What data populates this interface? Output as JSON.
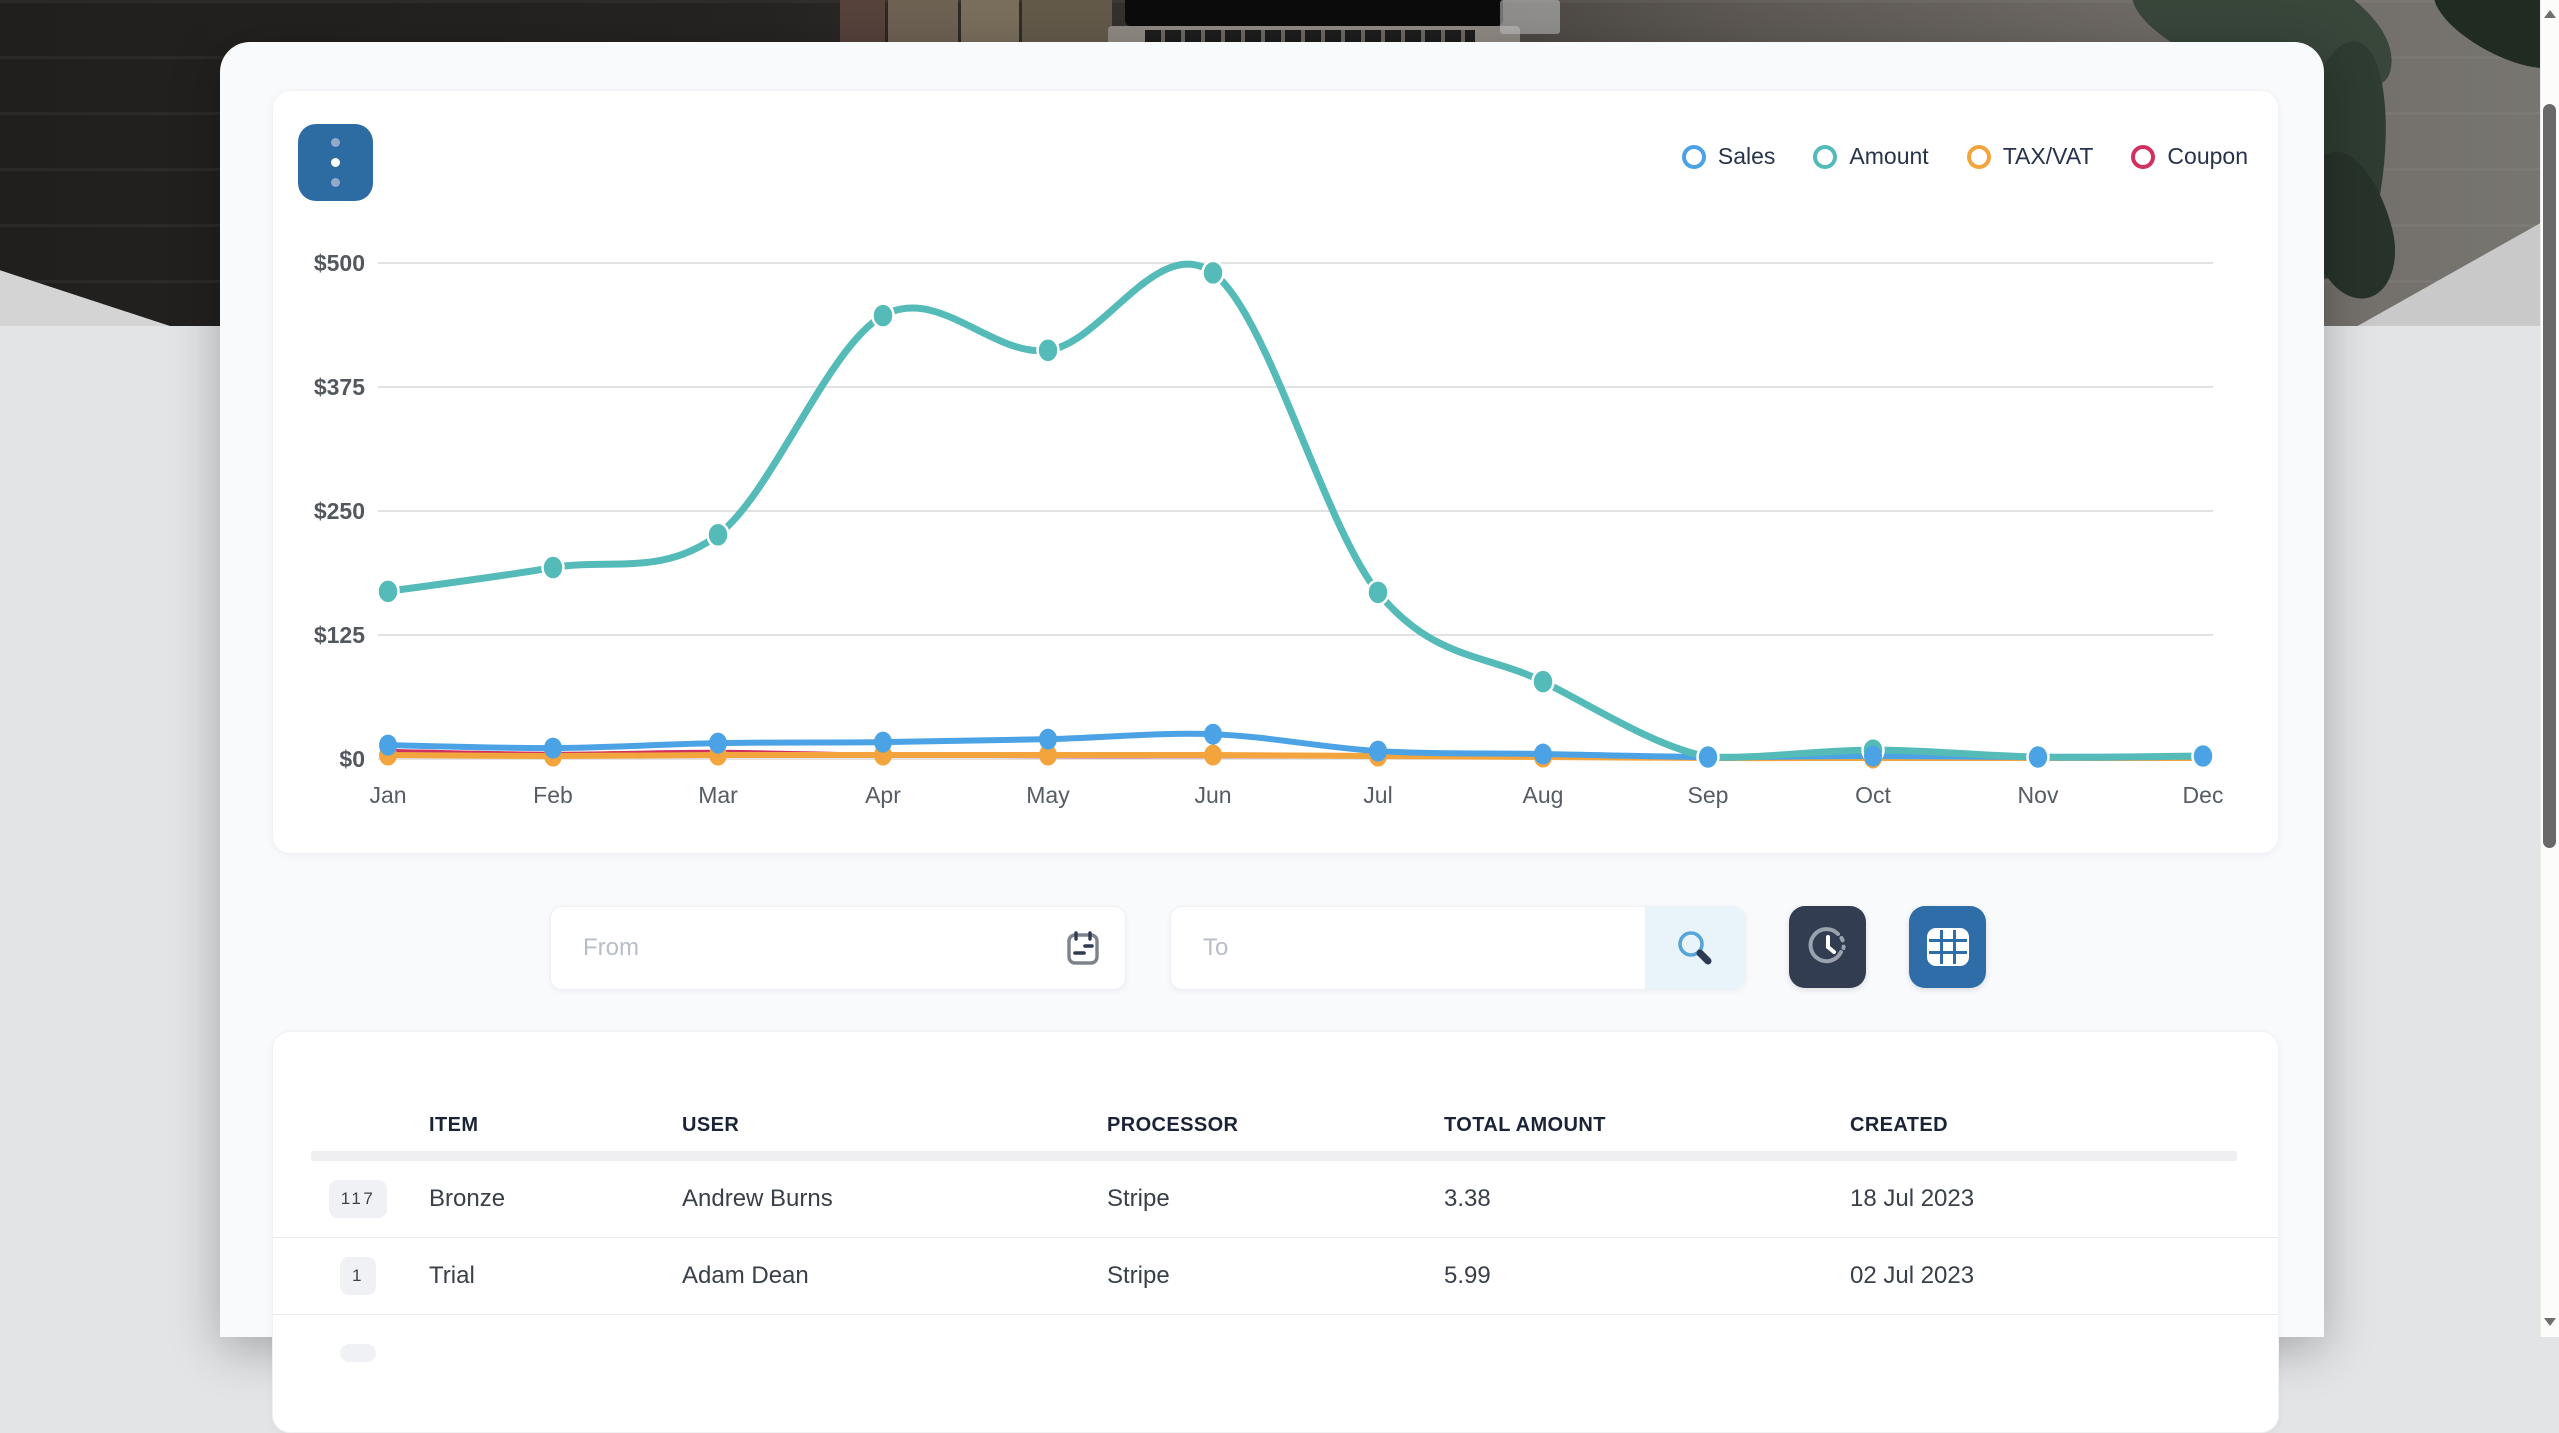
{
  "ui_colors": {
    "panel_bg": "#f9fafc",
    "card_bg": "#ffffff",
    "accent_blue": "#2d6ba3",
    "dark_navy": "#333d52",
    "grid_line": "#d8d9da",
    "table_header_text": "#1a2436"
  },
  "chart_card": {
    "menu_button": {
      "icon": "kebab-vertical-icon"
    }
  },
  "chart_data": {
    "type": "line",
    "x": [
      "Jan",
      "Feb",
      "Mar",
      "Apr",
      "May",
      "Jun",
      "Jul",
      "Aug",
      "Sep",
      "Oct",
      "Nov",
      "Dec"
    ],
    "series": [
      {
        "name": "Coupon",
        "color": "#d1315e",
        "values": [
          8,
          5,
          7,
          4,
          3,
          3,
          3,
          2,
          1,
          2,
          1,
          1
        ],
        "width": 4.5,
        "dots": false
      },
      {
        "name": "TAX/VAT",
        "color": "#f3a43c",
        "values": [
          4,
          3,
          4,
          4,
          4,
          4,
          3,
          2,
          1,
          1,
          1,
          1
        ],
        "width": 6,
        "dots": true
      },
      {
        "name": "Sales",
        "color": "#4ba2e4",
        "values": [
          14,
          11,
          16,
          17,
          20,
          25,
          8,
          5,
          2,
          3,
          2,
          3
        ],
        "width": 6,
        "dots": true
      },
      {
        "name": "Amount",
        "color": "#54bbb9",
        "values": [
          169,
          193,
          226,
          447,
          412,
          490,
          168,
          78,
          2,
          9,
          2,
          3
        ],
        "width": 7,
        "dots": true
      }
    ],
    "legend_order": [
      "Sales",
      "Amount",
      "TAX/VAT",
      "Coupon"
    ],
    "yticks": [
      "$0",
      "$125",
      "$250",
      "$375",
      "$500"
    ],
    "ylim": [
      0,
      500
    ],
    "grid": "horizontal",
    "legend_position": "top-right",
    "title": "",
    "xlabel": "",
    "ylabel": ""
  },
  "filters": {
    "from": {
      "placeholder": "From",
      "icon": "calendar-icon"
    },
    "to": {
      "placeholder": "To",
      "icon": "search-icon"
    },
    "history_button": {
      "icon": "clock-icon"
    },
    "table_button": {
      "icon": "grid-icon"
    }
  },
  "table": {
    "columns": [
      "ITEM",
      "USER",
      "PROCESSOR",
      "TOTAL AMOUNT",
      "CREATED"
    ],
    "rows": [
      {
        "badge": "117",
        "item": "Bronze",
        "user": "Andrew Burns",
        "processor": "Stripe",
        "total": "3.38",
        "created": "18 Jul 2023"
      },
      {
        "badge": "1",
        "item": "Trial",
        "user": "Adam Dean",
        "processor": "Stripe",
        "total": "5.99",
        "created": "02 Jul 2023"
      },
      {
        "badge": "",
        "item": "",
        "user": "",
        "processor": "",
        "total": "",
        "created": ""
      }
    ]
  }
}
